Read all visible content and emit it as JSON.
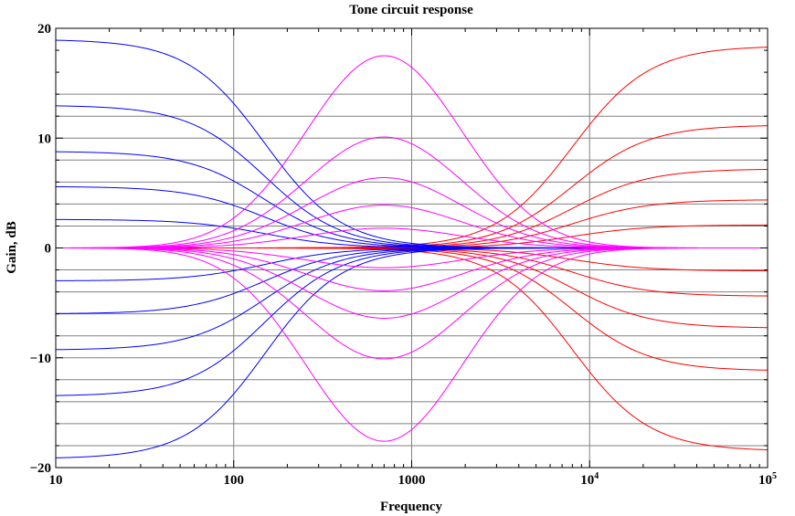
{
  "chart_data": {
    "type": "line",
    "title": "Tone circuit response",
    "xlabel": "Frequency",
    "ylabel": "Gain, dB",
    "x_scale": "log",
    "xlim": [
      10,
      100000
    ],
    "ylim": [
      -20,
      20
    ],
    "x_ticks": [
      {
        "value": 10,
        "label": "10"
      },
      {
        "value": 100,
        "label": "100"
      },
      {
        "value": 1000,
        "label": "1000"
      },
      {
        "value": 10000,
        "label": "10",
        "sup": "4"
      },
      {
        "value": 100000,
        "label": "10",
        "sup": "5"
      }
    ],
    "y_ticks": [
      {
        "value": 20,
        "label": "20"
      },
      {
        "value": 10,
        "label": "10"
      },
      {
        "value": 0,
        "label": "0"
      },
      {
        "value": -10,
        "label": "−10"
      },
      {
        "value": -20,
        "label": "−20"
      }
    ],
    "grid": true,
    "grid_x_major": [
      100,
      1000,
      10000
    ],
    "grid_y": [
      -18,
      -16,
      -14,
      -12,
      -10,
      -8,
      -6,
      -4,
      -2,
      2,
      4,
      6,
      8,
      10,
      12,
      14
    ],
    "colors": {
      "bass": "#0000ff",
      "mid": "#ff00ff",
      "treble": "#ff0000",
      "grid": "#808080"
    },
    "families": {
      "bass": {
        "kind": "lowshelf",
        "corner_hz": 150,
        "peaks_db": [
          19,
          13,
          8.8,
          5.6,
          2.6,
          -3,
          -6,
          -9.3,
          -13.5,
          -19.2
        ]
      },
      "mid": {
        "kind": "peak",
        "center_hz": 700,
        "width_decades": 0.62,
        "peaks_db": [
          17.5,
          10.1,
          6.4,
          3.9,
          1.8,
          -1.8,
          -3.9,
          -6.4,
          -10.1,
          -17.6
        ]
      },
      "treble": {
        "kind": "highshelf",
        "corner_hz": 8000,
        "peaks_db": [
          18.4,
          11.2,
          7.2,
          4.4,
          2.1,
          -2.1,
          -4.4,
          -7.3,
          -11.2,
          -18.5
        ]
      }
    }
  }
}
